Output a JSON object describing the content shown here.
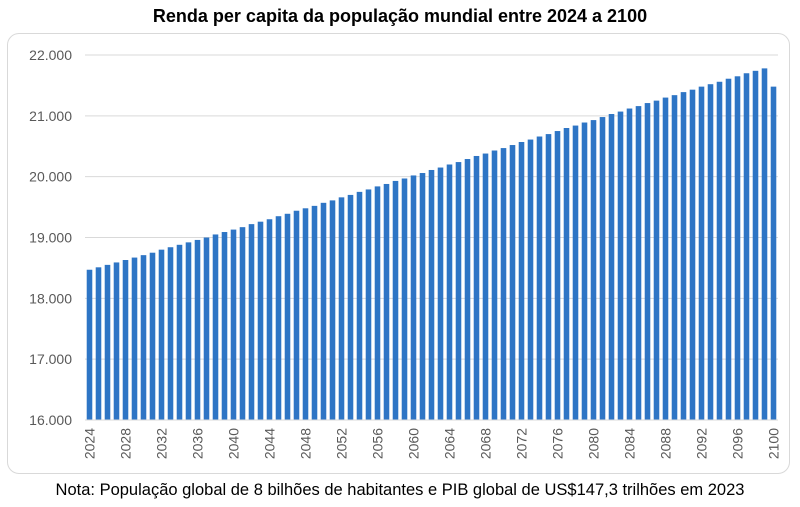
{
  "chart_data": {
    "type": "bar",
    "title": "Renda per capita da população mundial entre 2024 a 2100",
    "note": "Nota: População global de 8 bilhões de habitantes e PIB global de US$147,3 trilhões em 2023",
    "xlabel": "",
    "ylabel": "",
    "ylim": [
      16000,
      22000
    ],
    "y_ticks": [
      "16.000",
      "17.000",
      "18.000",
      "19.000",
      "20.000",
      "21.000",
      "22.000"
    ],
    "x_tick_labels": [
      "2024",
      "2028",
      "2032",
      "2036",
      "2040",
      "2044",
      "2048",
      "2052",
      "2056",
      "2060",
      "2064",
      "2068",
      "2072",
      "2076",
      "2080",
      "2084",
      "2088",
      "2092",
      "2096",
      "2100"
    ],
    "grid": true,
    "legend": "none",
    "bar_color": "#2E75C5",
    "categories": [
      2024,
      2025,
      2026,
      2027,
      2028,
      2029,
      2030,
      2031,
      2032,
      2033,
      2034,
      2035,
      2036,
      2037,
      2038,
      2039,
      2040,
      2041,
      2042,
      2043,
      2044,
      2045,
      2046,
      2047,
      2048,
      2049,
      2050,
      2051,
      2052,
      2053,
      2054,
      2055,
      2056,
      2057,
      2058,
      2059,
      2060,
      2061,
      2062,
      2063,
      2064,
      2065,
      2066,
      2067,
      2068,
      2069,
      2070,
      2071,
      2072,
      2073,
      2074,
      2075,
      2076,
      2077,
      2078,
      2079,
      2080,
      2081,
      2082,
      2083,
      2084,
      2085,
      2086,
      2087,
      2088,
      2089,
      2090,
      2091,
      2092,
      2093,
      2094,
      2095,
      2096,
      2097,
      2098,
      2099,
      2100
    ],
    "values": [
      18470,
      18510,
      18550,
      18590,
      18630,
      18670,
      18710,
      18750,
      18800,
      18840,
      18880,
      18920,
      18960,
      19000,
      19050,
      19090,
      19130,
      19170,
      19220,
      19260,
      19300,
      19350,
      19390,
      19440,
      19480,
      19520,
      19570,
      19610,
      19660,
      19700,
      19750,
      19790,
      19840,
      19880,
      19930,
      19970,
      20020,
      20060,
      20110,
      20150,
      20200,
      20240,
      20290,
      20340,
      20380,
      20430,
      20470,
      20520,
      20570,
      20610,
      20660,
      20700,
      20750,
      20800,
      20840,
      20890,
      20930,
      20980,
      21030,
      21070,
      21120,
      21160,
      21210,
      21250,
      21300,
      21340,
      21390,
      21430,
      21480,
      21520,
      21560,
      21610,
      21650,
      21700,
      21740,
      21780,
      21480
    ]
  }
}
